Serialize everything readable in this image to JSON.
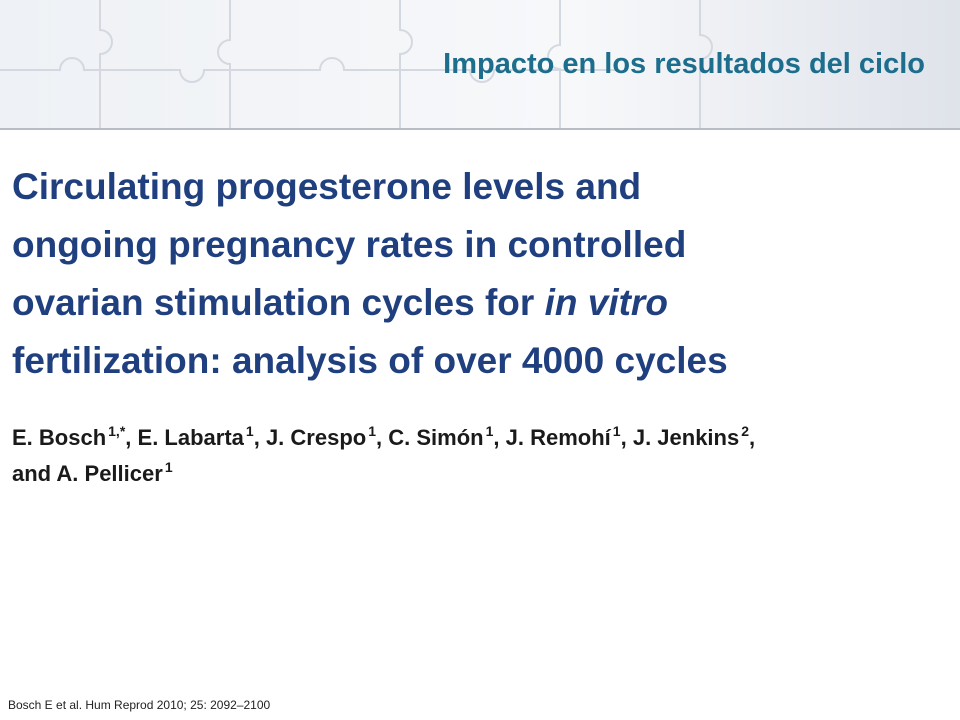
{
  "header": {
    "title": "Impacto en los resultados del ciclo"
  },
  "paper": {
    "title": [
      "Circulating progesterone levels and",
      "ongoing pregnancy rates in controlled",
      "ovarian stimulation cycles for",
      "in vitro",
      "fertilization: analysis of over 4000 cycles"
    ],
    "authors": [
      {
        "name": "E. Bosch",
        "affiliation": "1,*"
      },
      {
        "name": "E. Labarta",
        "affiliation": "1"
      },
      {
        "name": "J. Crespo",
        "affiliation": "1"
      },
      {
        "name": "C. Simón",
        "affiliation": "1"
      },
      {
        "name": "J. Remohí",
        "affiliation": "1"
      },
      {
        "name": "J. Jenkins",
        "affiliation": "2"
      },
      {
        "name": "and A. Pellicer",
        "affiliation": "1"
      }
    ],
    "separator": ","
  },
  "footer": {
    "citation": "Bosch E et al. Hum Reprod 2010; 25: 2092–2100"
  }
}
